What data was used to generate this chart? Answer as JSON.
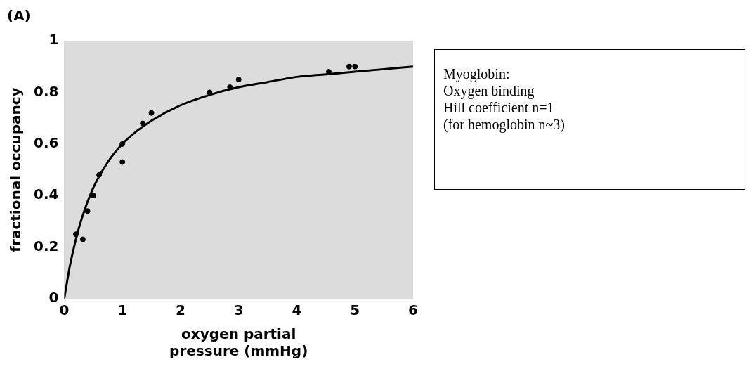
{
  "chart_data": {
    "type": "scatter",
    "xlabel": "oxygen partial pressure (mmHg)",
    "ylabel": "fractional occupancy",
    "annotations": [
      "(A)",
      "Myoglobin:\nOxygen binding\nHill coefficient n=1\n(for hemoglobin n~3)"
    ],
    "xlim": [
      0,
      6
    ],
    "xticks": [
      0,
      1,
      2,
      3,
      4,
      5,
      6
    ],
    "ylim": [
      0,
      1
    ],
    "yticks": [
      0,
      0.2,
      0.4,
      0.6,
      0.8,
      1
    ],
    "grid": false,
    "legend": false,
    "series": [
      {
        "type": "scatter",
        "color": "#000000",
        "marker": "circle",
        "x": [
          0.2,
          0.32,
          0.4,
          0.5,
          0.6,
          1.0,
          1.0,
          1.35,
          1.5,
          2.5,
          2.85,
          3.0,
          4.55,
          4.9,
          5.0
        ],
        "values": [
          0.25,
          0.23,
          0.34,
          0.4,
          0.48,
          0.53,
          0.6,
          0.68,
          0.72,
          0.8,
          0.82,
          0.85,
          0.88,
          0.9,
          0.9
        ]
      },
      {
        "type": "line",
        "color": "#000000",
        "marker": "none",
        "line_style": "solid",
        "x": [
          0,
          0.1,
          0.2,
          0.3,
          0.5,
          0.75,
          1,
          1.25,
          1.5,
          2,
          2.5,
          3,
          3.5,
          4,
          4.5,
          5,
          5.5,
          6
        ],
        "values": [
          0,
          0.13,
          0.23,
          0.31,
          0.43,
          0.53,
          0.6,
          0.65,
          0.69,
          0.75,
          0.79,
          0.82,
          0.84,
          0.86,
          0.87,
          0.88,
          0.89,
          0.9
        ]
      }
    ]
  }
}
